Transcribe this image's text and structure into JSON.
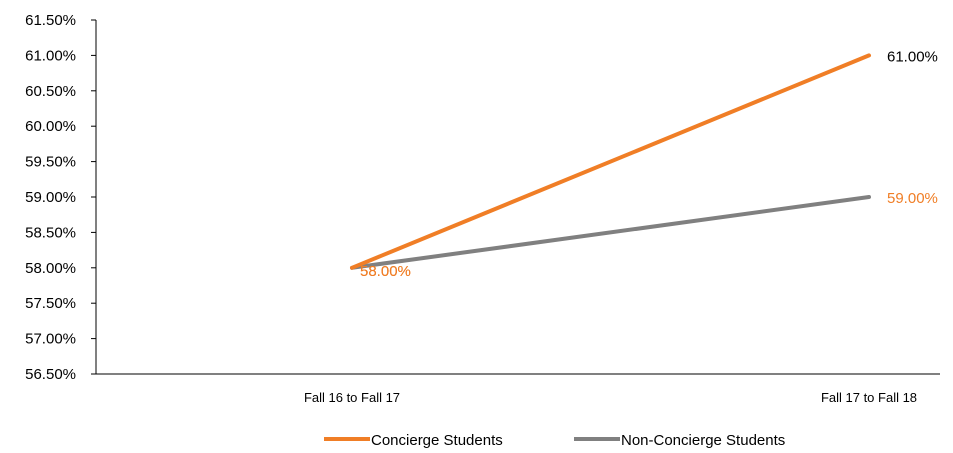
{
  "chart_data": {
    "type": "line",
    "categories": [
      "Fall 16 to Fall 17",
      "Fall 17 to Fall 18"
    ],
    "y_tick_labels": [
      "56.50%",
      "57.00%",
      "57.50%",
      "58.00%",
      "58.50%",
      "59.00%",
      "59.50%",
      "60.00%",
      "60.50%",
      "61.00%",
      "61.50%"
    ],
    "ylim": [
      56.5,
      61.5
    ],
    "grid": false,
    "legend_position": "bottom",
    "series": [
      {
        "name": "Concierge Students",
        "color": "#F07E26",
        "values": [
          58.0,
          61.0
        ],
        "data_labels": [
          "58.00%",
          "61.00%"
        ],
        "data_label_colors": [
          "#F07E26",
          "#000000"
        ]
      },
      {
        "name": "Non-Concierge Students",
        "color": "#808080",
        "values": [
          58.0,
          59.0
        ],
        "data_labels": [
          "58.00%",
          "59.00%"
        ],
        "data_label_colors": [
          "#F07E26",
          "#F07E26"
        ]
      }
    ]
  }
}
